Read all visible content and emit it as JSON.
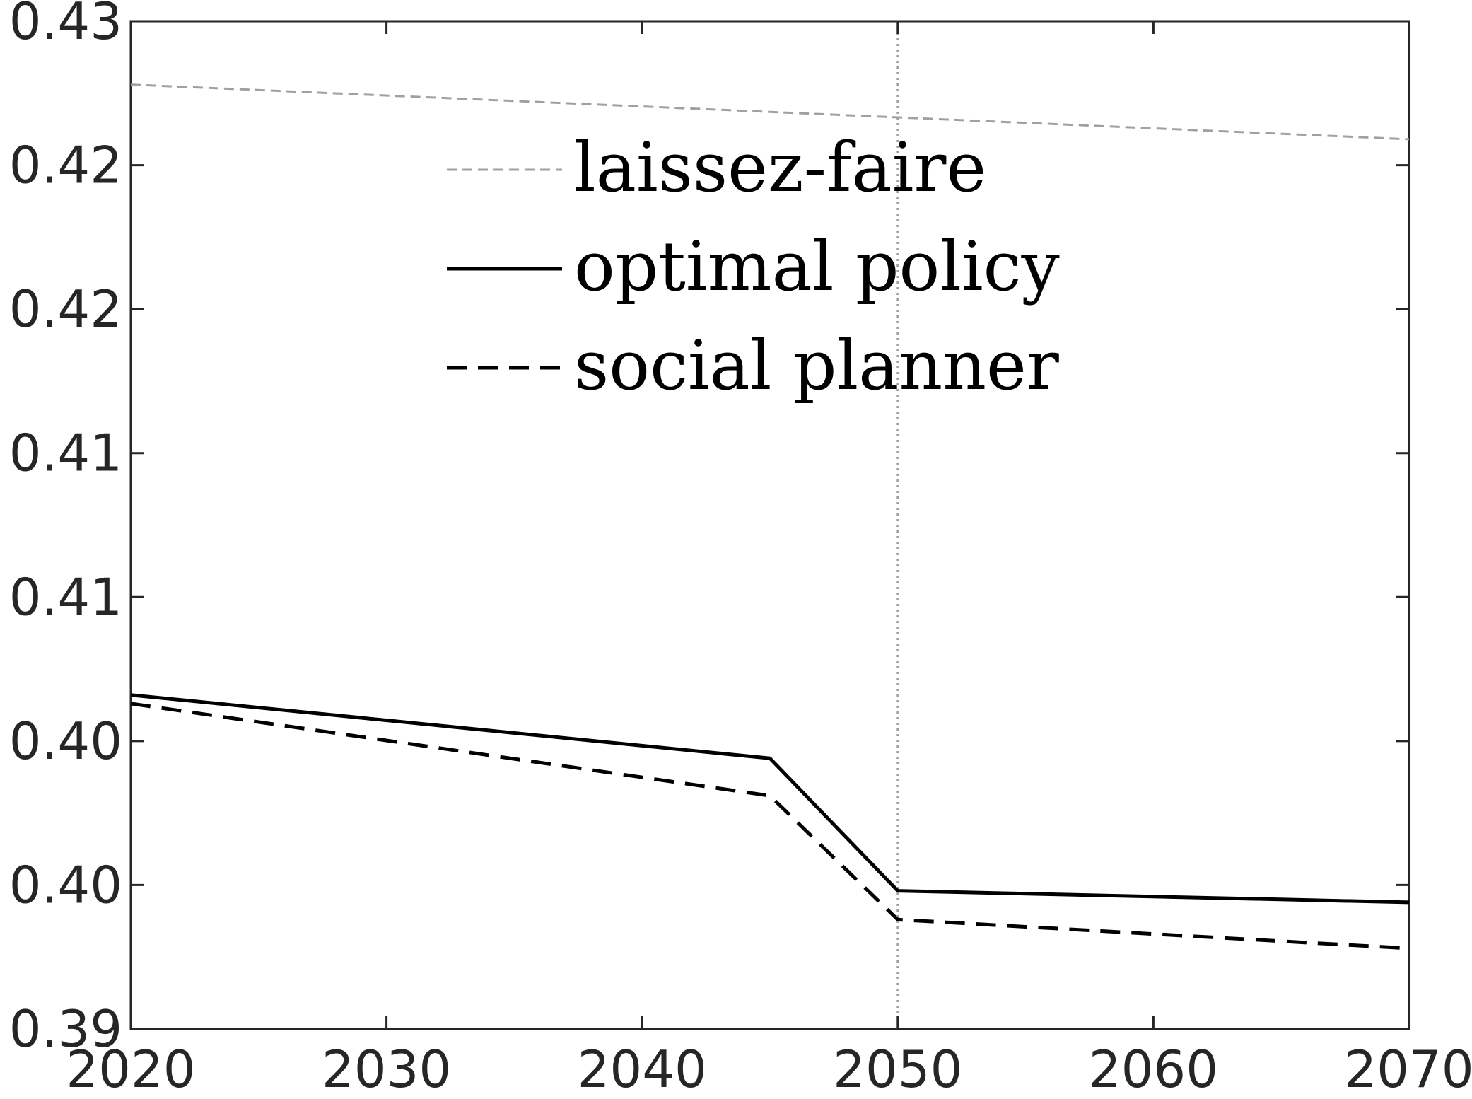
{
  "chart_data": {
    "type": "line",
    "title": "",
    "xlabel": "",
    "ylabel": "",
    "xlim": [
      2020,
      2070
    ],
    "ylim": [
      0.39,
      0.425
    ],
    "x_ticks": [
      2020,
      2030,
      2040,
      2050,
      2060,
      2070
    ],
    "x_tick_labels": [
      "2020",
      "2030",
      "2040",
      "2050",
      "2060",
      "2070"
    ],
    "y_ticks": [
      0.39,
      0.395,
      0.4,
      0.405,
      0.41,
      0.415,
      0.42,
      0.425
    ],
    "y_tick_labels": [
      "0.39",
      "0.40",
      "0.40",
      "0.41",
      "0.41",
      "0.42",
      "0.42",
      "0.43"
    ],
    "grid": false,
    "reference_line": {
      "x": 2050,
      "color": "#a0a0a0",
      "style": "dotted"
    },
    "legend": {
      "location": "top-center"
    },
    "series": [
      {
        "name": "laissez-faire",
        "color": "#a0a0a0",
        "style": "dashed",
        "x": [
          2020,
          2070
        ],
        "y": [
          0.4228,
          0.4209
        ]
      },
      {
        "name": "optimal policy",
        "color": "#000000",
        "style": "solid",
        "x": [
          2020,
          2045,
          2050,
          2070
        ],
        "y": [
          0.4016,
          0.3994,
          0.3948,
          0.3944
        ]
      },
      {
        "name": "social planner",
        "color": "#000000",
        "style": "dashed",
        "x": [
          2020,
          2045,
          2050,
          2070
        ],
        "y": [
          0.4013,
          0.3981,
          0.3938,
          0.3928
        ]
      }
    ]
  }
}
